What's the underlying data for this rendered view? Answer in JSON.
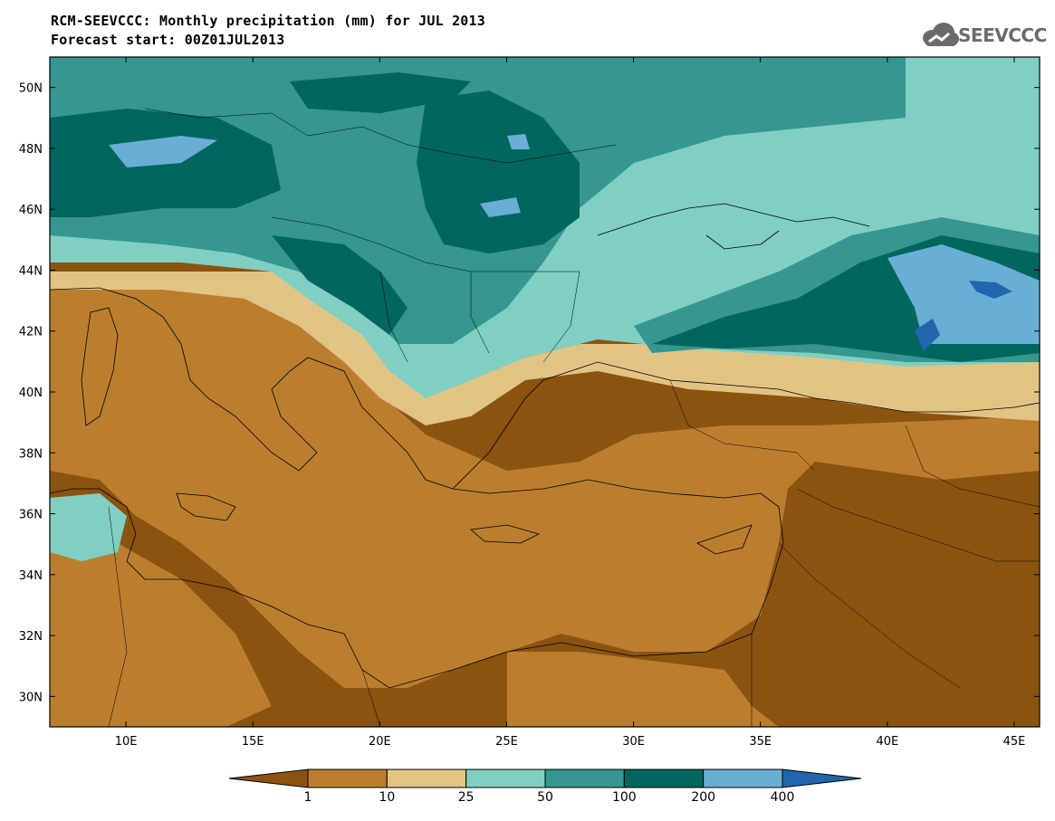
{
  "header": {
    "title_line1": "RCM-SEEVCCC: Monthly precipitation (mm) for JUL 2013",
    "title_line2": "Forecast start: 00Z01JUL2013"
  },
  "logo": {
    "text": "SEEVCCC",
    "icon": "cloud-logo-icon"
  },
  "map": {
    "lon_ticks": [
      "10E",
      "15E",
      "20E",
      "25E",
      "30E",
      "35E",
      "40E",
      "45E"
    ],
    "lat_ticks": [
      "50N",
      "48N",
      "46N",
      "44N",
      "42N",
      "40N",
      "38N",
      "36N",
      "34N",
      "32N",
      "30N"
    ],
    "lon_values": [
      10,
      15,
      20,
      25,
      30,
      35,
      40,
      45
    ],
    "lat_values": [
      50,
      48,
      46,
      44,
      42,
      40,
      38,
      36,
      34,
      32,
      30
    ],
    "lon_range": [
      7,
      46
    ],
    "lat_range": [
      29,
      51
    ]
  },
  "colorbar": {
    "labels": [
      "1",
      "10",
      "25",
      "50",
      "100",
      "200",
      "400"
    ],
    "colors": [
      "#8b5310",
      "#bb7e2f",
      "#e1c484",
      "#80cfc2",
      "#35978f",
      "#01665e",
      "#6aaed6",
      "#2166ac"
    ]
  }
}
